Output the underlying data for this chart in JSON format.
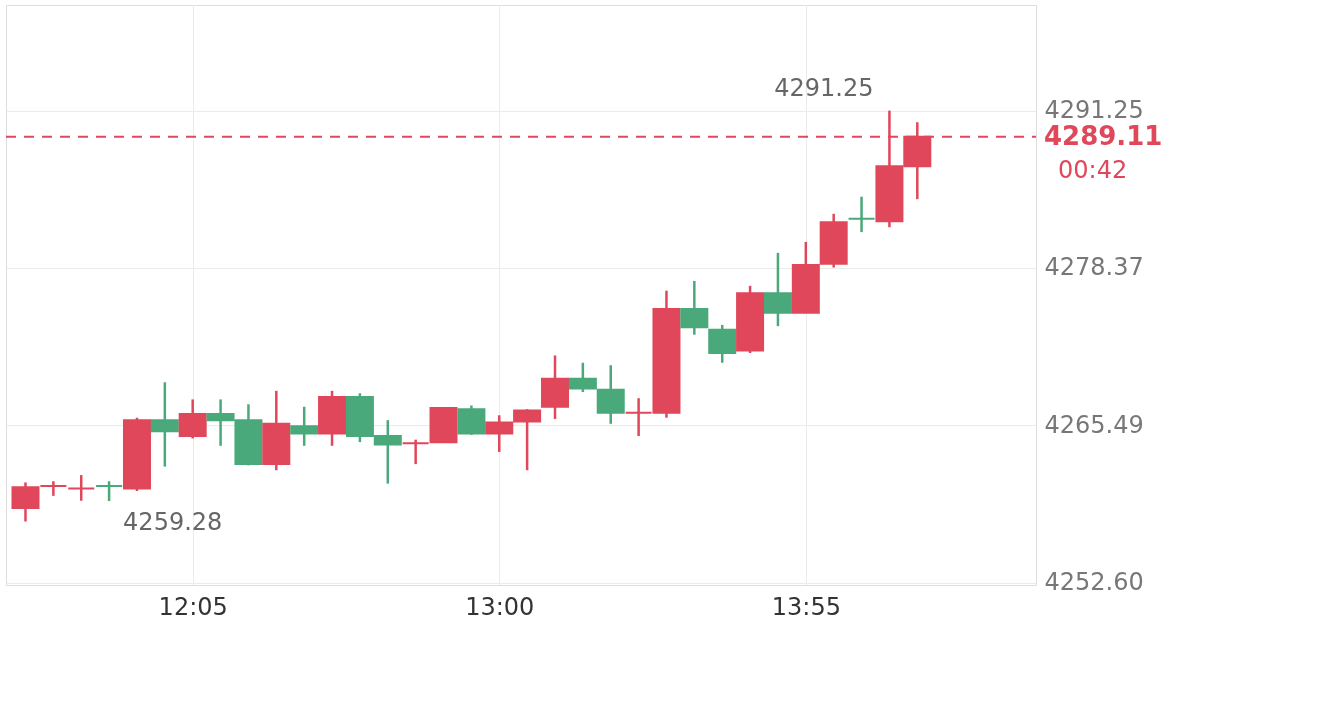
{
  "chart_data": {
    "type": "candlestick",
    "x": [
      11.5833,
      11.6667,
      11.75,
      11.8333,
      11.9167,
      12.0,
      12.0833,
      12.1667,
      12.25,
      12.3333,
      12.4167,
      12.5,
      12.5833,
      12.6667,
      12.75,
      12.8333,
      12.9167,
      13.0,
      13.0833,
      13.1667,
      13.25,
      13.3333,
      13.4167,
      13.5,
      13.5833,
      13.6667,
      13.75,
      13.8333,
      13.9167,
      14.0,
      14.0833,
      14.1667,
      14.25
    ],
    "ohlc": [
      [
        4258.7,
        4260.8,
        4257.6,
        4260.4
      ],
      [
        4260.5,
        4260.9,
        4259.7,
        4260.5
      ],
      [
        4260.3,
        4261.4,
        4259.3,
        4260.3
      ],
      [
        4260.5,
        4260.9,
        4259.28,
        4260.5
      ],
      [
        4260.3,
        4266.1,
        4260.1,
        4265.9
      ],
      [
        4265.9,
        4269.0,
        4262.1,
        4265.0
      ],
      [
        4264.6,
        4267.6,
        4264.4,
        4266.4
      ],
      [
        4266.4,
        4267.6,
        4263.8,
        4265.9
      ],
      [
        4265.9,
        4267.2,
        4262.2,
        4262.3
      ],
      [
        4262.3,
        4268.3,
        4261.8,
        4265.6
      ],
      [
        4265.4,
        4267.0,
        4263.8,
        4264.8
      ],
      [
        4264.8,
        4268.3,
        4263.8,
        4267.8
      ],
      [
        4267.8,
        4268.1,
        4264.1,
        4264.6
      ],
      [
        4264.6,
        4265.9,
        4260.7,
        4263.9
      ],
      [
        4264.0,
        4264.3,
        4262.3,
        4264.0
      ],
      [
        4264.1,
        4266.9,
        4264.1,
        4266.9
      ],
      [
        4266.8,
        4267.1,
        4264.7,
        4264.8
      ],
      [
        4264.8,
        4266.3,
        4263.3,
        4265.7
      ],
      [
        4265.8,
        4266.8,
        4261.8,
        4266.7
      ],
      [
        4267.0,
        4271.2,
        4266.0,
        4269.3
      ],
      [
        4269.3,
        4270.6,
        4268.2,
        4268.5
      ],
      [
        4268.4,
        4270.4,
        4265.6,
        4266.5
      ],
      [
        4266.5,
        4267.7,
        4264.6,
        4266.5
      ],
      [
        4266.5,
        4276.5,
        4266.1,
        4275.0
      ],
      [
        4275.0,
        4277.3,
        4272.9,
        4273.5
      ],
      [
        4273.3,
        4273.7,
        4270.6,
        4271.4
      ],
      [
        4271.6,
        4276.9,
        4271.4,
        4276.3
      ],
      [
        4276.3,
        4279.6,
        4273.6,
        4274.7
      ],
      [
        4274.7,
        4280.5,
        4274.7,
        4278.6
      ],
      [
        4278.7,
        4282.8,
        4278.4,
        4282.1
      ],
      [
        4282.4,
        4284.2,
        4281.3,
        4282.4
      ],
      [
        4282.2,
        4291.25,
        4281.7,
        4286.7
      ],
      [
        4286.7,
        4290.3,
        4284.0,
        4289.11
      ]
    ],
    "colors": [
      "#e0475a",
      "#e0475a",
      "#e0475a",
      "#4aa97a",
      "#e0475a",
      "#4aa97a",
      "#e0475a",
      "#4aa97a",
      "#4aa97a",
      "#e0475a",
      "#4aa97a",
      "#e0475a",
      "#4aa97a",
      "#4aa97a",
      "#e0475a",
      "#e0475a",
      "#4aa97a",
      "#e0475a",
      "#e0475a",
      "#e0475a",
      "#4aa97a",
      "#4aa97a",
      "#e0475a",
      "#e0475a",
      "#4aa97a",
      "#4aa97a",
      "#e0475a",
      "#4aa97a",
      "#e0475a",
      "#e0475a",
      "#4aa97a",
      "#e0475a",
      "#e0475a"
    ],
    "xlim": [
      11.54,
      14.59
    ],
    "ylim": [
      4252.4,
      4299.9
    ],
    "xticks": [
      {
        "value": 12.0833,
        "label": "12:05"
      },
      {
        "value": 13.0,
        "label": "13:00"
      },
      {
        "value": 13.9167,
        "label": "13:55"
      }
    ],
    "yticks": [
      4291.25,
      4278.37,
      4265.49,
      {
        "value": 4252.6,
        "label": "4252.60"
      }
    ],
    "grid": true,
    "ref_lines": [
      {
        "axis": "y",
        "value": 4289.11,
        "label": "4289.11",
        "color": "#e0475a",
        "line_style": "dashed"
      }
    ],
    "annotations": [
      {
        "text": "4291.25",
        "x": 14.1667,
        "y": 4291.25
      },
      {
        "text": "4259.28",
        "x": 11.8333,
        "y": 4259.28
      },
      "00:42"
    ]
  }
}
